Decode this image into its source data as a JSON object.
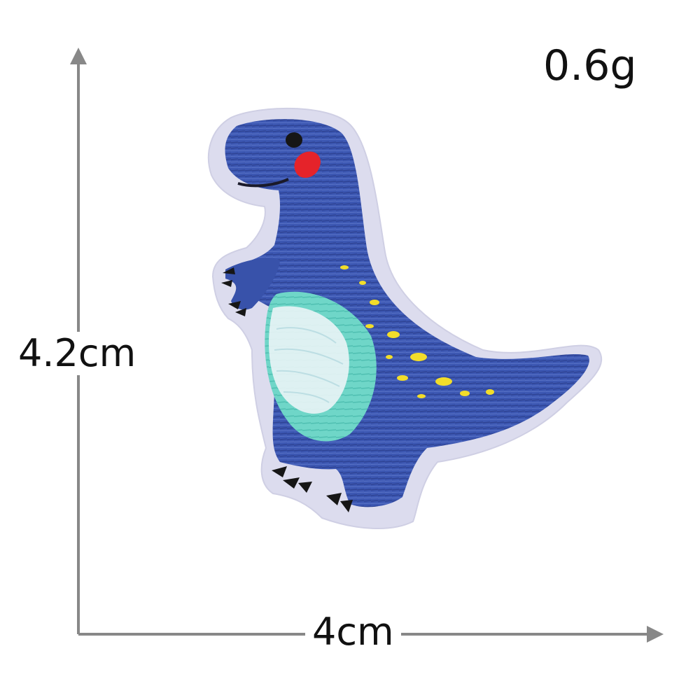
{
  "product": {
    "weight": "0.6g",
    "height": "4.2cm",
    "width": "4cm"
  },
  "colors": {
    "background": "#ffffff",
    "arrow": "#888888",
    "felt_backing": "#dcdcee",
    "body_blue": "#3c57b2",
    "belly_teal": "#6fd6c8",
    "belly_white": "#eaf4f6",
    "spots_yellow": "#f2dd2a",
    "cheek_red": "#e5232a",
    "claws_black": "#161616"
  },
  "image": {
    "subject": "embroidered-dinosaur-patch"
  }
}
